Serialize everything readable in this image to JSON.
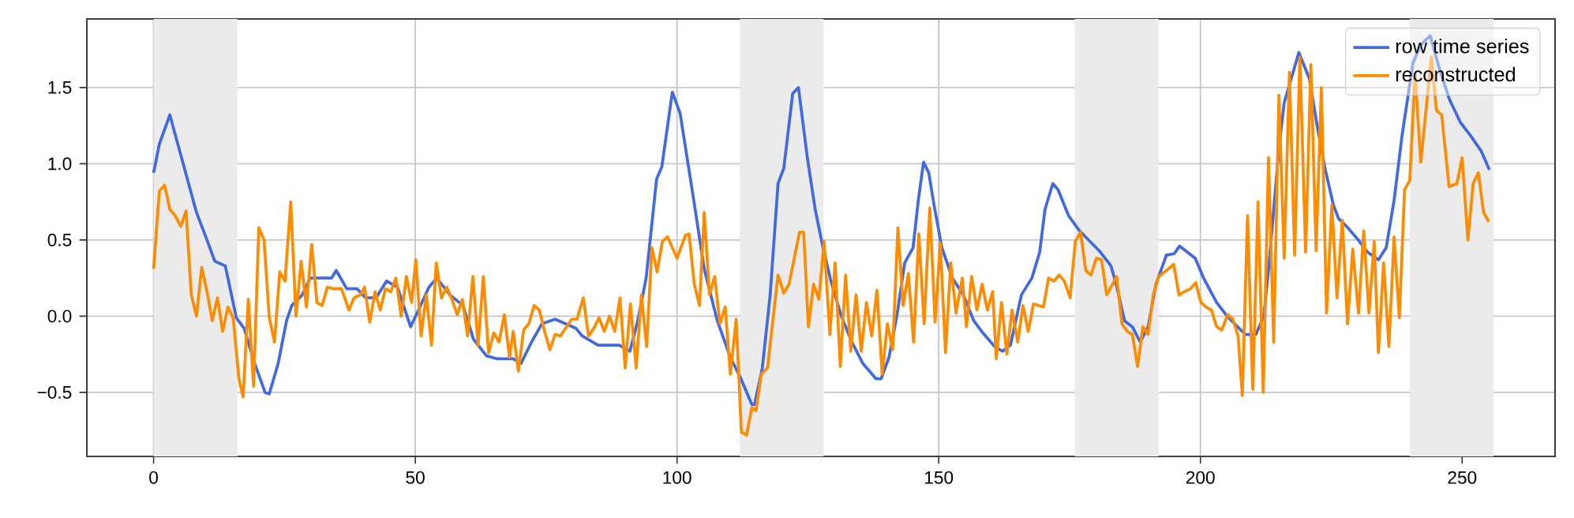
{
  "chart_data": {
    "type": "line",
    "xlim": [
      -12.75,
      267.75
    ],
    "ylim": [
      -0.92,
      1.95
    ],
    "xticks": [
      0,
      50,
      100,
      150,
      200,
      250
    ],
    "yticks": [
      {
        "value": -0.5,
        "label": "−0.5"
      },
      {
        "value": 0,
        "label": "0.0"
      },
      {
        "value": 0.5,
        "label": "0.5"
      },
      {
        "value": 1,
        "label": "1.0"
      },
      {
        "value": 1.5,
        "label": "1.5"
      }
    ],
    "grid": true,
    "legend": "top right",
    "line_style": "solid",
    "bands": [
      {
        "axis": "x",
        "from": 0,
        "to": 16,
        "color": "#ebebeb"
      },
      {
        "axis": "x",
        "from": 112,
        "to": 128,
        "color": "#ebebeb"
      },
      {
        "axis": "x",
        "from": 176,
        "to": 192,
        "color": "#ebebeb"
      },
      {
        "axis": "x",
        "from": 240,
        "to": 256,
        "color": "#ebebeb"
      }
    ],
    "series": [
      {
        "name": "row time series",
        "color": "#4169e1",
        "x": [
          0,
          1.1,
          3.1,
          8.2,
          10.2,
          11.7,
          13.7,
          15.8,
          17.3,
          19.3,
          21.3,
          22.1,
          23.8,
          25.4,
          26.4,
          28.4,
          29.9,
          34,
          34.9,
          36.9,
          38.9,
          40.5,
          42.5,
          44.5,
          46.6,
          49.1,
          50.6,
          52.6,
          54.1,
          56.6,
          59.1,
          61.1,
          63.6,
          65.7,
          68.7,
          70.2,
          72.2,
          74.2,
          76.7,
          78.7,
          80.7,
          81.9,
          84.9,
          89,
          91,
          92.5,
          94.1,
          96.1,
          97.1,
          99.1,
          100.6,
          103.2,
          105.2,
          107.7,
          110.2,
          112.2,
          114.3,
          114.8,
          116.3,
          117.8,
          119.3,
          120.4,
          122.1,
          123.2,
          124.9,
          126.4,
          127.9,
          129.4,
          131.4,
          133.4,
          135.5,
          138,
          139,
          140.5,
          142,
          143.5,
          145.1,
          146.1,
          147.1,
          148.1,
          149.1,
          150.6,
          152.6,
          154.7,
          156.7,
          158.2,
          160.7,
          162.2,
          163.7,
          165.8,
          167.8,
          169.3,
          170.3,
          171.8,
          172.8,
          174.8,
          176.9,
          178.9,
          180.9,
          182.9,
          183.9,
          185.5,
          187,
          188.5,
          190,
          191.5,
          193.5,
          195,
          196,
          199,
          200.6,
          203.1,
          205.1,
          207.1,
          208.6,
          210.6,
          212.1,
          213,
          214,
          215,
          216,
          218.8,
          220.8,
          222.3,
          223.8,
          225.4,
          226.4,
          227.9,
          230.4,
          231.9,
          234,
          235.5,
          237,
          238.5,
          240.6,
          242.1,
          243.9,
          245.6,
          247.6,
          249.7,
          251.7,
          253.7,
          255.2
        ],
        "values": [
          0.94,
          1.13,
          1.32,
          0.68,
          0.5,
          0.36,
          0.33,
          -0.01,
          -0.08,
          -0.31,
          -0.5,
          -0.51,
          -0.31,
          -0.03,
          0.07,
          0.14,
          0.25,
          0.25,
          0.3,
          0.18,
          0.18,
          0.12,
          0.12,
          0.23,
          0.19,
          -0.07,
          0.04,
          0.19,
          0.25,
          0.14,
          0.07,
          -0.15,
          -0.26,
          -0.28,
          -0.28,
          -0.31,
          -0.17,
          -0.05,
          -0.02,
          -0.05,
          -0.08,
          -0.13,
          -0.19,
          -0.19,
          -0.23,
          -0.03,
          0.25,
          0.9,
          0.98,
          1.47,
          1.33,
          0.76,
          0.31,
          -0.03,
          -0.27,
          -0.41,
          -0.58,
          -0.58,
          -0.34,
          0.14,
          0.87,
          0.97,
          1.46,
          1.5,
          1.04,
          0.7,
          0.45,
          0.23,
          0,
          -0.17,
          -0.31,
          -0.41,
          -0.41,
          -0.27,
          0,
          0.35,
          0.45,
          0.76,
          1.01,
          0.94,
          0.73,
          0.45,
          0.25,
          0.14,
          -0.03,
          -0.1,
          -0.2,
          -0.23,
          -0.19,
          0.14,
          0.25,
          0.42,
          0.7,
          0.87,
          0.83,
          0.66,
          0.56,
          0.49,
          0.42,
          0.33,
          0.21,
          -0.03,
          -0.07,
          -0.17,
          -0.07,
          0.21,
          0.4,
          0.41,
          0.46,
          0.38,
          0.25,
          0.09,
          0,
          -0.07,
          -0.12,
          -0.12,
          0,
          0.3,
          0.7,
          1.1,
          1.4,
          1.73,
          1.56,
          1.25,
          0.97,
          0.73,
          0.64,
          0.59,
          0.49,
          0.42,
          0.37,
          0.45,
          0.76,
          1.18,
          1.66,
          1.78,
          1.84,
          1.63,
          1.42,
          1.27,
          1.18,
          1.08,
          0.96
        ]
      },
      {
        "name": "reconstructed",
        "color": "#ff8c00",
        "x": [
          0,
          1.1,
          2.1,
          3.1,
          4.1,
          5.2,
          6.2,
          7.2,
          8.2,
          9.2,
          10.2,
          11.2,
          12.2,
          13.2,
          14.2,
          15.2,
          16.3,
          17.1,
          18.1,
          19.1,
          20.1,
          21.1,
          22.1,
          23.1,
          24.1,
          25.1,
          26.2,
          27.2,
          28.2,
          29.2,
          30.2,
          31.2,
          32.2,
          33.2,
          34.4,
          35.9,
          37.3,
          38.3,
          39.5,
          40.3,
          41.3,
          42.3,
          43.3,
          44.3,
          45.3,
          46.3,
          47.3,
          48.3,
          49.3,
          50.1,
          51.1,
          52.1,
          53.1,
          54,
          55,
          56,
          57,
          58,
          59,
          60,
          61,
          62,
          63,
          64,
          65,
          66,
          67,
          68,
          68.7,
          69.7,
          70.7,
          71.7,
          72.7,
          73.7,
          74.7,
          75.7,
          76.7,
          77.7,
          79.9,
          80.9,
          82.1,
          83.1,
          84.1,
          85.1,
          86.1,
          87.1,
          88.1,
          89.1,
          90.1,
          91.1,
          92.2,
          93.2,
          94.2,
          95.2,
          96.2,
          97.2,
          98.2,
          100,
          101.6,
          102.3,
          103.3,
          104.3,
          105.2,
          106.2,
          107.2,
          108.2,
          109.2,
          110.2,
          111.3,
          112.3,
          113.3,
          114.3,
          115.1,
          116.1,
          117.3,
          118.3,
          119.3,
          120.4,
          121.4,
          122.4,
          123.4,
          124.2,
          125.1,
          126.1,
          127.1,
          128.1,
          129.2,
          130.2,
          131.2,
          132.2,
          133.2,
          134.2,
          135.2,
          136.2,
          137.2,
          138.2,
          139.2,
          140.2,
          141.2,
          142.2,
          143.2,
          144.2,
          145.2,
          146.2,
          147.2,
          148.3,
          149.3,
          150.3,
          151.3,
          152.3,
          153.3,
          154.5,
          155.3,
          156.3,
          157.3,
          158.3,
          159.3,
          160.3,
          161,
          162,
          163,
          164,
          165.1,
          166.1,
          167.1,
          168.1,
          170,
          171,
          172,
          173,
          174,
          175.1,
          176.1,
          177.1,
          178.1,
          179.1,
          180.1,
          181.1,
          182.1,
          184,
          185,
          186,
          187,
          188,
          189,
          190,
          191,
          192,
          193.5,
          194.9,
          195.9,
          196.9,
          198.1,
          199.1,
          200.1,
          201.1,
          202.1,
          203.1,
          204.1,
          205.2,
          206.2,
          207.2,
          208,
          209,
          210,
          211,
          212,
          213,
          214,
          215,
          216,
          217,
          218,
          219,
          220.1,
          221.1,
          222.1,
          223.1,
          224.1,
          225.1,
          226.1,
          227.1,
          228.1,
          229.1,
          230.2,
          231.2,
          232.2,
          233.2,
          234,
          235,
          236,
          237,
          238,
          239,
          240,
          241,
          242.1,
          243.1,
          244.1,
          245.1,
          246.1,
          247.5,
          249,
          250,
          251.1,
          252.1,
          253.1,
          254.1,
          255.1
        ],
        "values": [
          0.31,
          0.82,
          0.86,
          0.7,
          0.66,
          0.59,
          0.69,
          0.14,
          0,
          0.32,
          0.16,
          -0.03,
          0.12,
          -0.1,
          0.06,
          -0.01,
          -0.41,
          -0.53,
          0.11,
          -0.46,
          0.58,
          0.5,
          -0.01,
          -0.17,
          0.29,
          0.23,
          0.75,
          0,
          0.36,
          0.06,
          0.47,
          0.09,
          0.07,
          0.19,
          0.18,
          0.18,
          0.04,
          0.12,
          0.14,
          0.19,
          -0.04,
          0.16,
          0.04,
          0.18,
          0.16,
          0.25,
          0,
          0.26,
          0.09,
          0.37,
          -0.13,
          0.14,
          -0.19,
          0.35,
          0.12,
          0.19,
          0.11,
          0.01,
          0.11,
          -0.13,
          0.26,
          -0.19,
          0.26,
          -0.24,
          -0.11,
          -0.17,
          0.01,
          -0.27,
          -0.1,
          -0.36,
          -0.09,
          -0.05,
          0.07,
          0.04,
          -0.1,
          -0.22,
          -0.12,
          -0.13,
          -0.02,
          -0.02,
          0.12,
          -0.13,
          -0.08,
          -0.01,
          -0.1,
          0,
          -0.1,
          0.12,
          -0.34,
          0.08,
          -0.34,
          0.14,
          -0.2,
          0.45,
          0.29,
          0.49,
          0.52,
          0.38,
          0.53,
          0.54,
          0.21,
          0.07,
          0.68,
          0.14,
          0.26,
          -0.05,
          0.06,
          -0.38,
          -0.02,
          -0.76,
          -0.78,
          -0.6,
          -0.62,
          -0.38,
          -0.34,
          -0.03,
          0.27,
          0.15,
          0.21,
          0.38,
          0.55,
          0.55,
          -0.07,
          0.21,
          0.11,
          0.49,
          -0.12,
          0.35,
          -0.33,
          0.27,
          -0.23,
          0.14,
          -0.23,
          0.09,
          -0.13,
          0.17,
          -0.38,
          -0.05,
          -0.22,
          0.58,
          0.07,
          0.28,
          -0.17,
          0.54,
          -0.05,
          0.71,
          -0.04,
          0.48,
          -0.24,
          0.35,
          0.02,
          0.25,
          -0.07,
          0.26,
          0.04,
          0.21,
          0.04,
          0.16,
          -0.28,
          0.09,
          -0.25,
          0.04,
          -0.17,
          0.07,
          -0.1,
          0.08,
          0.06,
          0.25,
          0.23,
          0.27,
          0.23,
          0.12,
          0.49,
          0.55,
          0.3,
          0.27,
          0.38,
          0.37,
          0.14,
          0.26,
          -0.05,
          -0.1,
          -0.12,
          -0.33,
          -0.07,
          -0.12,
          0.14,
          0.26,
          0.3,
          0.34,
          0.14,
          0.16,
          0.18,
          0.22,
          0.09,
          0.06,
          0.04,
          -0.07,
          -0.09,
          0.01,
          -0.02,
          -0.13,
          -0.52,
          0.66,
          -0.48,
          0.75,
          -0.5,
          1.04,
          -0.17,
          1.45,
          0.38,
          1.6,
          0.4,
          1.7,
          0.42,
          1.65,
          0.43,
          1.5,
          0.02,
          0.73,
          0.12,
          0.63,
          -0.05,
          0.44,
          0.02,
          0.56,
          0.02,
          0.49,
          -0.24,
          0.35,
          -0.2,
          0.52,
          -0.01,
          0.83,
          0.89,
          1.59,
          1.01,
          1.35,
          1.7,
          1.35,
          1.32,
          0.85,
          0.87,
          1.04,
          0.5,
          0.87,
          0.94,
          0.68,
          0.62
        ]
      }
    ]
  }
}
